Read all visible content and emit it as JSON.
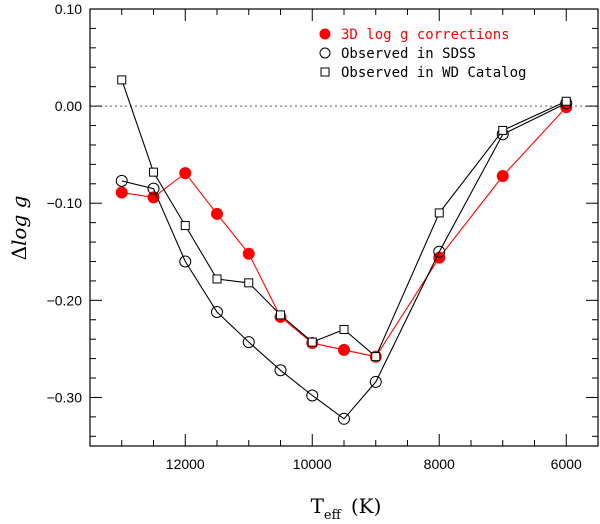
{
  "chart_data": {
    "type": "line",
    "title": "",
    "xlabel": {
      "main": "T",
      "sub": "eff",
      "unit": "(K)"
    },
    "ylabel": {
      "prefix": "Δ",
      "main": "log g"
    },
    "xlim": [
      13500,
      5500
    ],
    "ylim": [
      -0.35,
      0.1
    ],
    "x_ticks": [
      12000,
      10000,
      8000,
      6000
    ],
    "x_tick_labels": [
      "12000",
      "10000",
      "8000",
      "6000"
    ],
    "y_ticks": [
      0.1,
      0.0,
      -0.1,
      -0.2,
      -0.3
    ],
    "y_tick_labels": [
      "0.10",
      "0.00",
      "−0.10",
      "−0.20",
      "−0.30"
    ],
    "reference_line": {
      "y": 0.0,
      "style": "dotted"
    },
    "legend_position": "top-right",
    "series": [
      {
        "name": "3D log g corrections",
        "marker": "filled-circle",
        "color": "#ff0000",
        "x": [
          13000,
          12500,
          12000,
          11500,
          11000,
          10500,
          10000,
          9500,
          9000,
          8000,
          7000,
          6000
        ],
        "y": [
          -0.089,
          -0.094,
          -0.069,
          -0.111,
          -0.152,
          -0.217,
          -0.244,
          -0.251,
          -0.258,
          -0.156,
          -0.072,
          -0.001
        ]
      },
      {
        "name": "Observed in SDSS",
        "marker": "open-circle",
        "color": "#000000",
        "x": [
          13000,
          12500,
          12000,
          11500,
          11000,
          10500,
          10000,
          9500,
          9000,
          8000,
          7000,
          6000
        ],
        "y": [
          -0.077,
          -0.085,
          -0.16,
          -0.212,
          -0.243,
          -0.272,
          -0.298,
          -0.322,
          -0.284,
          -0.15,
          -0.029,
          0.003
        ]
      },
      {
        "name": "Observed in WD Catalog",
        "marker": "open-square",
        "color": "#000000",
        "x": [
          13000,
          12500,
          12000,
          11500,
          11000,
          10500,
          10000,
          9500,
          9000,
          8000,
          7000,
          6000
        ],
        "y": [
          0.027,
          -0.068,
          -0.123,
          -0.178,
          -0.182,
          -0.215,
          -0.243,
          -0.23,
          -0.258,
          -0.11,
          -0.025,
          0.005
        ]
      }
    ]
  }
}
